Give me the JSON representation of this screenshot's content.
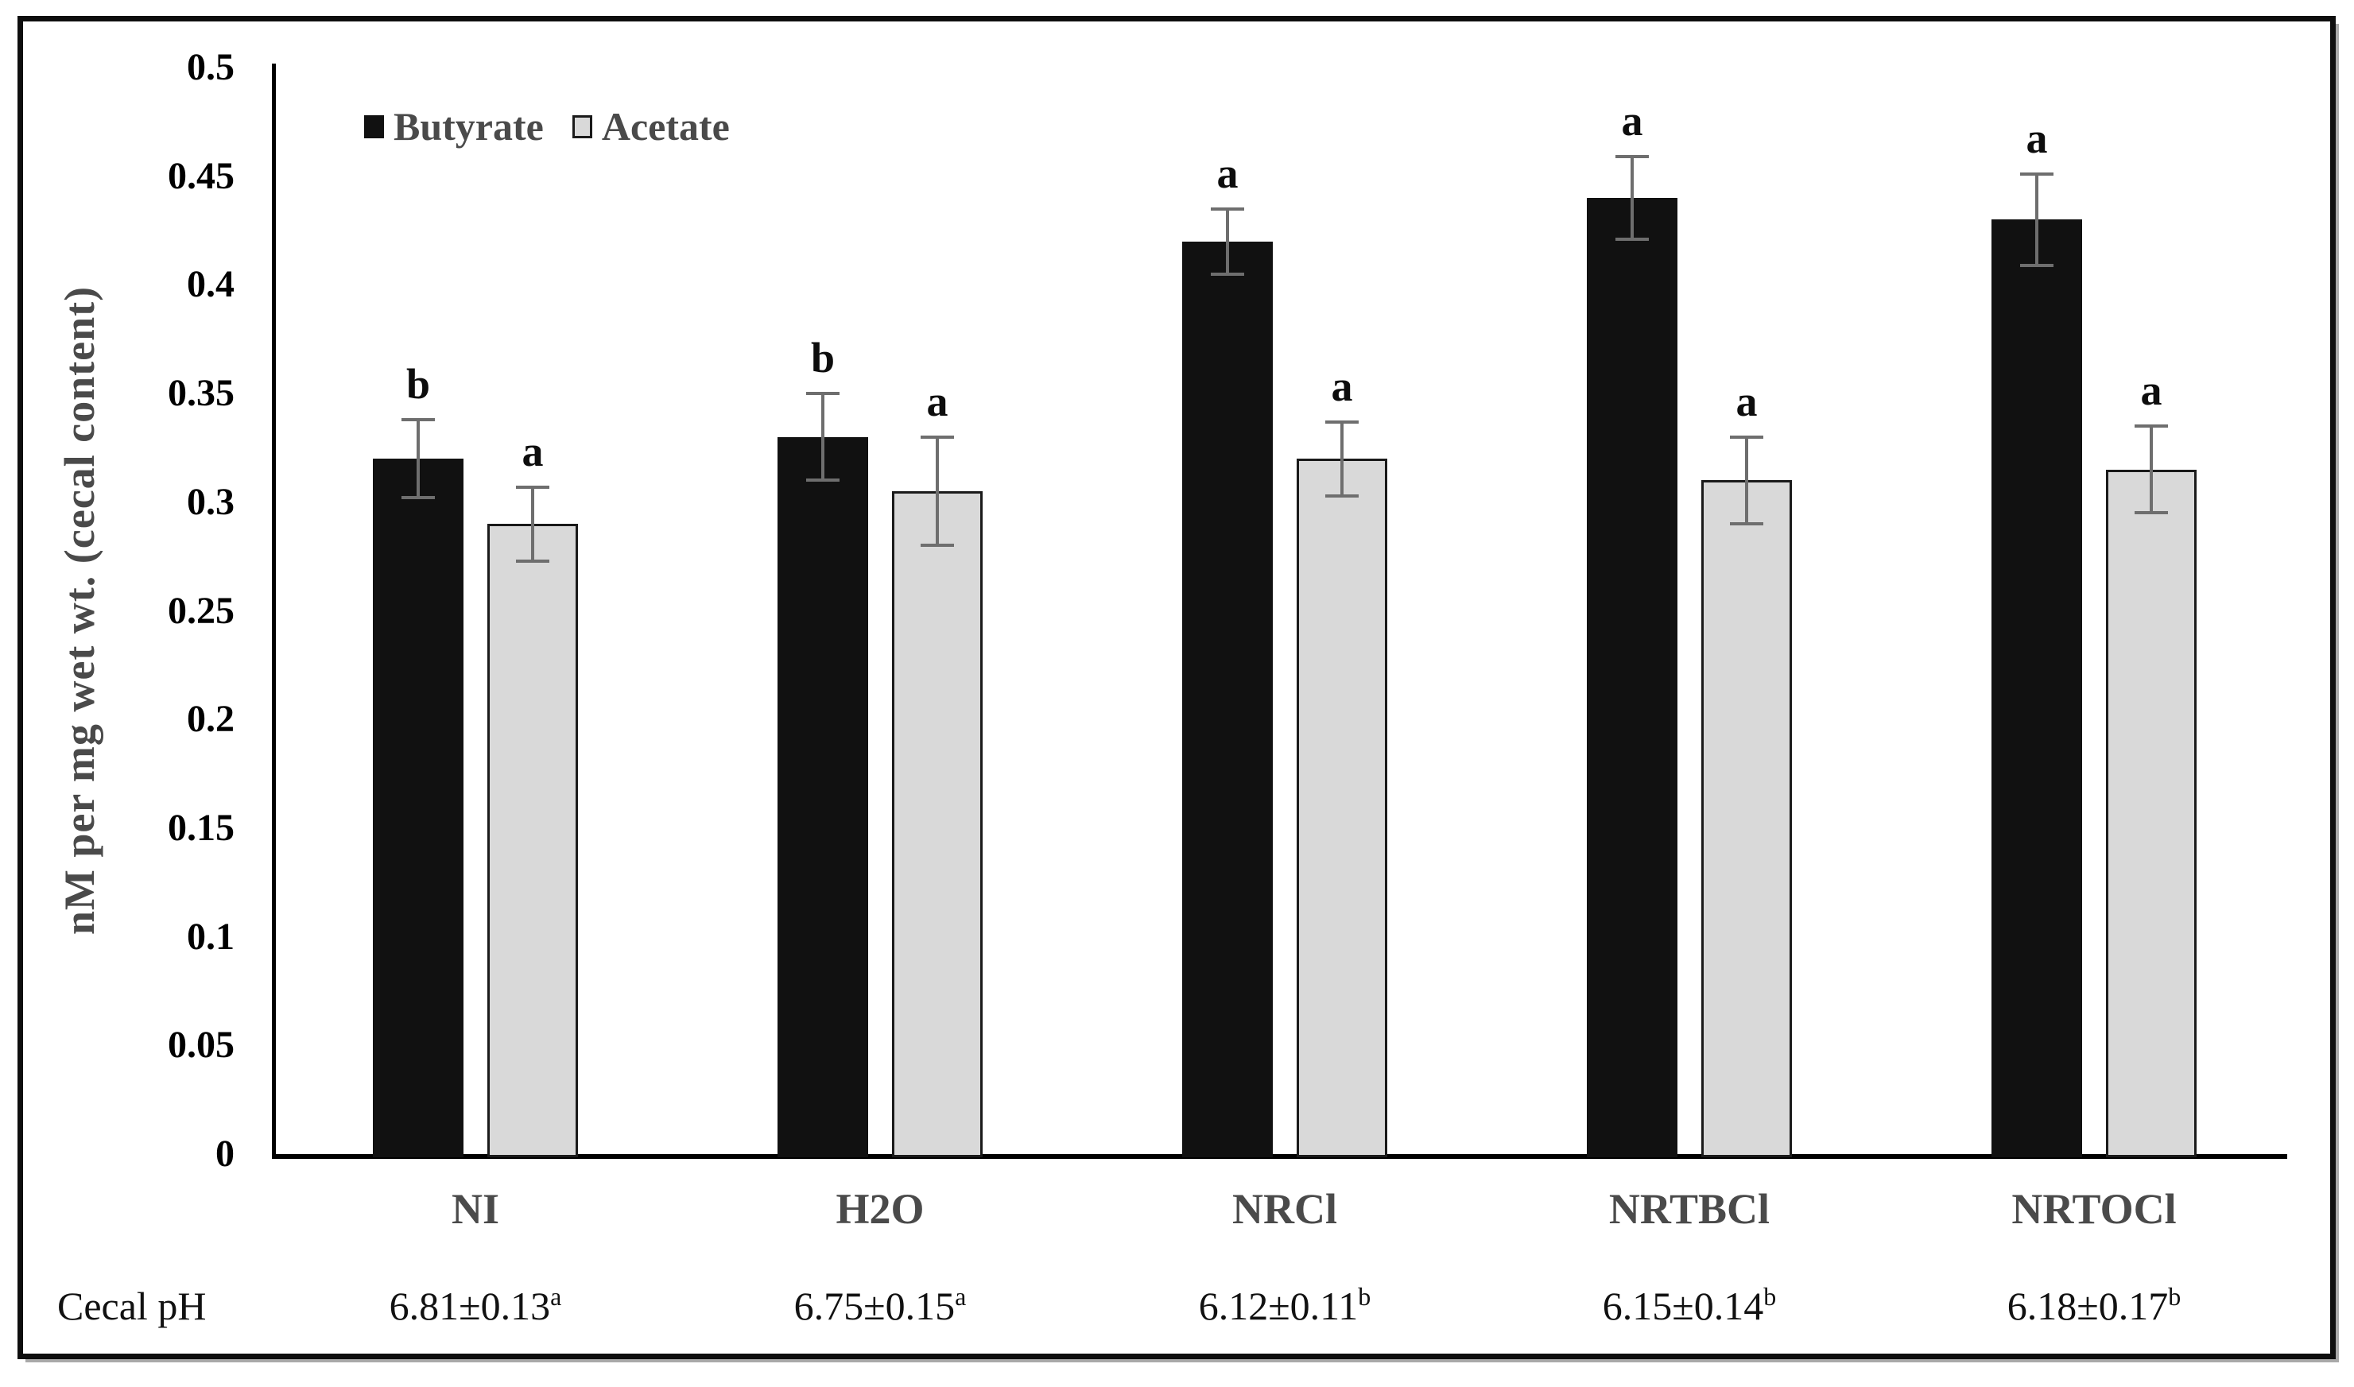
{
  "chart_data": {
    "type": "bar",
    "title": "",
    "xlabel": "",
    "ylabel": "nM per mg wet wt. (cecal content)",
    "ylim": [
      0,
      0.5
    ],
    "ytick_step": 0.05,
    "ytick_labels": [
      "0",
      "0.05",
      "0.1",
      "0.15",
      "0.2",
      "0.25",
      "0.3",
      "0.35",
      "0.4",
      "0.45",
      "0.5"
    ],
    "categories": [
      "NI",
      "H2O",
      "NRCl",
      "NRTBCl",
      "NRTOCl"
    ],
    "series": [
      {
        "name": "Butyrate",
        "fill": "#111111",
        "border": "#111111",
        "values": [
          0.32,
          0.33,
          0.42,
          0.44,
          0.43
        ],
        "errors": [
          0.018,
          0.02,
          0.015,
          0.019,
          0.021
        ],
        "sig_letters": [
          "b",
          "b",
          "a",
          "a",
          "a"
        ]
      },
      {
        "name": "Acetate",
        "fill": "#d9d9d9",
        "border": "#1a1a1a",
        "values": [
          0.29,
          0.305,
          0.32,
          0.31,
          0.315
        ],
        "errors": [
          0.017,
          0.025,
          0.017,
          0.02,
          0.02
        ],
        "sig_letters": [
          "a",
          "a",
          "a",
          "a",
          "a"
        ]
      }
    ],
    "legend_position": "top-left-inside",
    "grid": false,
    "colors": {
      "axis": "#000000",
      "error_bar": "#6e6e6e",
      "tick_label": "#000000",
      "category_label": "#4a4a4a",
      "legend_text": "#4a4a4a",
      "sig_letter": "#0d0d0d"
    }
  },
  "ph_row": {
    "label": "Cecal pH",
    "values": [
      {
        "text": "6.81±0.13",
        "sup": "a"
      },
      {
        "text": "6.75±0.15",
        "sup": "a"
      },
      {
        "text": "6.12±0.11",
        "sup": "b"
      },
      {
        "text": "6.15±0.14",
        "sup": "b"
      },
      {
        "text": "6.18±0.17",
        "sup": "b"
      }
    ]
  }
}
